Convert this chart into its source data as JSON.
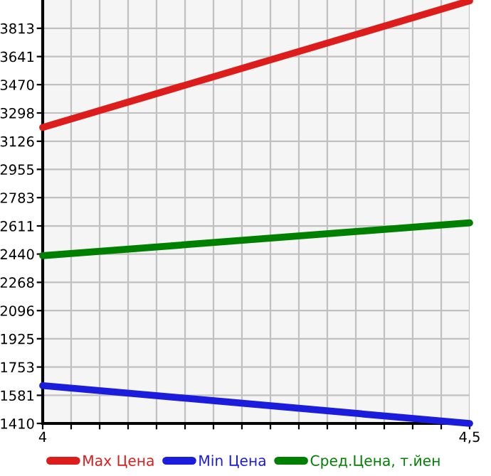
{
  "chart_data": {
    "type": "line",
    "x": [
      4,
      4.5
    ],
    "series": [
      {
        "name": "Max Цена",
        "color": "#dd1c1c",
        "values": [
          3210,
          3980
        ]
      },
      {
        "name": "Min Цена",
        "color": "#1c1cdd",
        "values": [
          1640,
          1410
        ]
      },
      {
        "name": "Сред.Цена, т.йен",
        "color": "#008000",
        "values": [
          2430,
          2630
        ]
      }
    ],
    "xlim": [
      4,
      4.5
    ],
    "xticks": [
      4,
      {
        "value": 4.0333,
        "label": null
      },
      {
        "value": 4.0667,
        "label": null
      },
      {
        "value": 4.1,
        "label": null
      },
      {
        "value": 4.1333,
        "label": null
      },
      {
        "value": 4.1667,
        "label": null
      },
      {
        "value": 4.2,
        "label": null
      },
      {
        "value": 4.2333,
        "label": null
      },
      {
        "value": 4.2667,
        "label": null
      },
      {
        "value": 4.3,
        "label": null
      },
      {
        "value": 4.3333,
        "label": null
      },
      {
        "value": 4.3667,
        "label": null
      },
      {
        "value": 4.4,
        "label": null
      },
      {
        "value": 4.4333,
        "label": null
      },
      {
        "value": 4.4667,
        "label": null
      },
      {
        "value": 4.5,
        "label": "4,5"
      }
    ],
    "ylim": [
      1410,
      3985
    ],
    "yticks": [
      1410,
      1581,
      1753,
      1925,
      2096,
      2268,
      2440,
      2611,
      2783,
      2955,
      3126,
      3298,
      3470,
      3641,
      3813
    ],
    "grid": true,
    "legend": "bottom",
    "marker": "none",
    "line_style": "solid"
  }
}
